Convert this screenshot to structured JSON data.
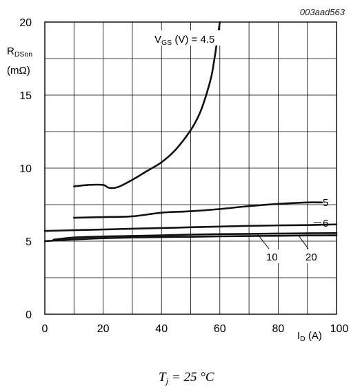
{
  "figure_id": "003aad563",
  "condition": {
    "symbol": "T",
    "subscript": "j",
    "value_text": " = 25 °C"
  },
  "chart_data": {
    "type": "line",
    "title": "",
    "xlabel": {
      "main": "I",
      "sub": "D",
      "unit": " (A)"
    },
    "ylabel": {
      "main": "R",
      "sub": "DSon",
      "unit": "(mΩ)"
    },
    "xlim": [
      0,
      100
    ],
    "ylim": [
      0,
      20
    ],
    "x_ticks": [
      0,
      20,
      40,
      60,
      80,
      100
    ],
    "y_ticks": [
      0,
      5,
      10,
      15,
      20
    ],
    "grid": true,
    "legend": "none",
    "series": [
      {
        "name": "4.5",
        "label": {
          "prefix": "V",
          "sub": "GS",
          "text": " (V) = 4.5"
        },
        "x": [
          10,
          15,
          20,
          22,
          25,
          30,
          35,
          40,
          45,
          50,
          53,
          55,
          57,
          58,
          59,
          60
        ],
        "y": [
          8.75,
          8.85,
          8.85,
          8.65,
          8.7,
          9.2,
          9.8,
          10.4,
          11.3,
          12.6,
          13.7,
          14.8,
          16.2,
          17.3,
          18.6,
          20.0
        ]
      },
      {
        "name": "5",
        "label": {
          "text": "5"
        },
        "x": [
          10,
          20,
          30,
          40,
          50,
          60,
          70,
          80,
          90,
          95
        ],
        "y": [
          6.6,
          6.65,
          6.7,
          6.95,
          7.05,
          7.2,
          7.4,
          7.55,
          7.65,
          7.65
        ]
      },
      {
        "name": "6",
        "label": {
          "text": "6"
        },
        "x": [
          0,
          10,
          20,
          30,
          40,
          50,
          60,
          70,
          80,
          90,
          100
        ],
        "y": [
          5.7,
          5.75,
          5.8,
          5.85,
          5.9,
          5.95,
          6.0,
          6.05,
          6.08,
          6.1,
          6.15
        ]
      },
      {
        "name": "10",
        "label": {
          "text": "10"
        },
        "x": [
          3,
          10,
          20,
          30,
          40,
          50,
          60,
          70,
          80,
          90,
          100
        ],
        "y": [
          5.1,
          5.25,
          5.32,
          5.36,
          5.4,
          5.45,
          5.48,
          5.5,
          5.52,
          5.54,
          5.55
        ]
      },
      {
        "name": "20",
        "label": {
          "text": "20"
        },
        "x": [
          0,
          10,
          20,
          30,
          40,
          50,
          60,
          70,
          80,
          90,
          100
        ],
        "y": [
          5.0,
          5.12,
          5.2,
          5.25,
          5.28,
          5.3,
          5.33,
          5.35,
          5.37,
          5.39,
          5.4
        ]
      }
    ]
  }
}
